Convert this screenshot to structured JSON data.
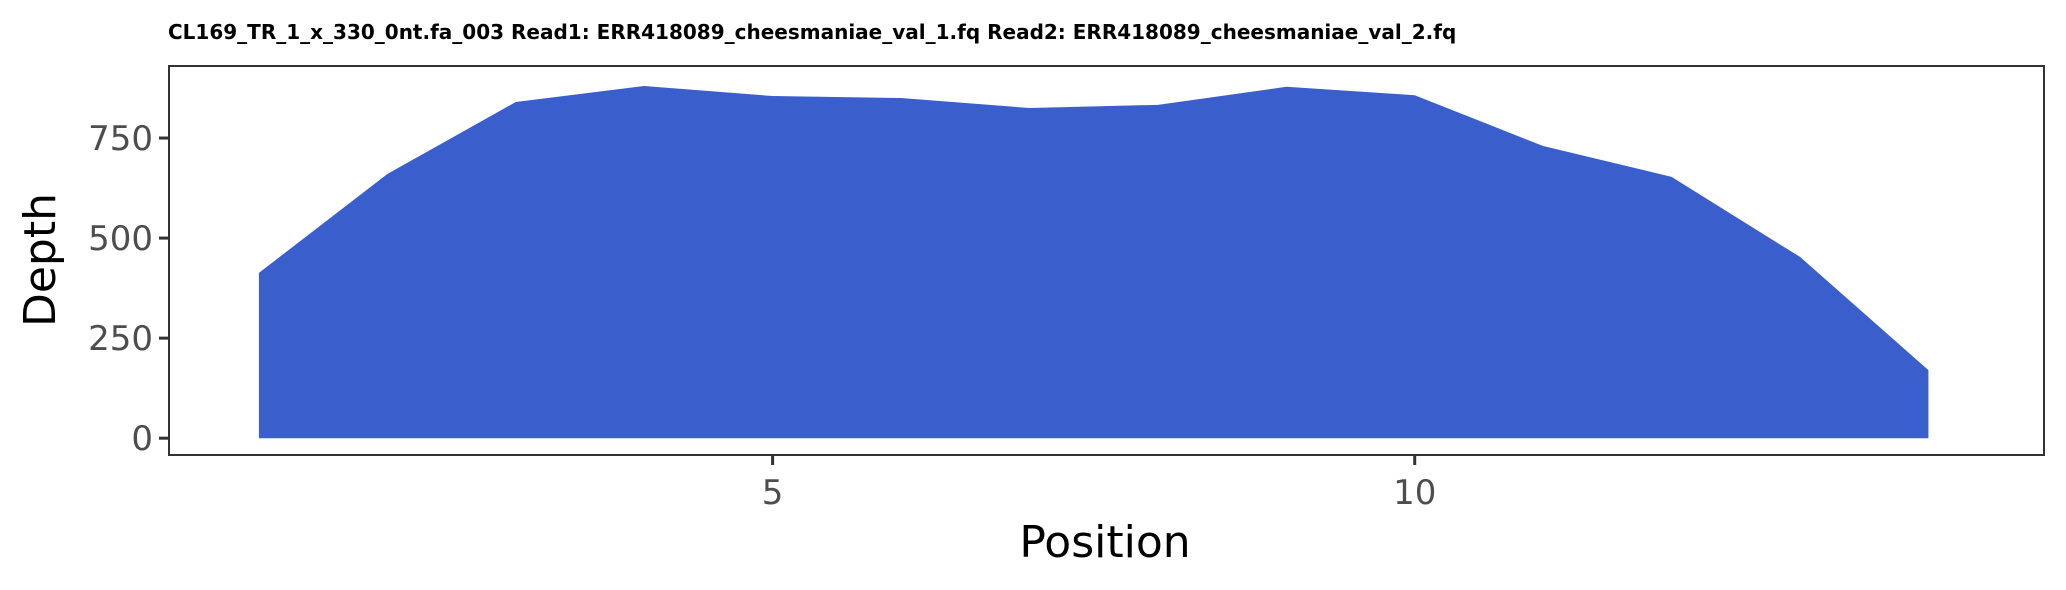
{
  "chart_data": {
    "type": "area",
    "title": "CL169_TR_1_x_330_0nt.fa_003 Read1: ERR418089_cheesmaniae_val_1.fq Read2: ERR418089_cheesmaniae_val_2.fq",
    "xlabel": "Position",
    "ylabel": "Depth",
    "x": [
      1,
      2,
      3,
      4,
      5,
      6,
      7,
      8,
      9,
      10,
      11,
      12,
      13,
      14
    ],
    "y": [
      413,
      660,
      840,
      880,
      855,
      850,
      825,
      833,
      878,
      857,
      730,
      653,
      453,
      170
    ],
    "xlim": [
      0.3,
      14.9
    ],
    "ylim": [
      -42,
      930
    ],
    "xticks": [
      5,
      10
    ],
    "yticks": [
      0,
      250,
      500,
      750
    ],
    "fill_color": "#3a5fcd",
    "grid": false,
    "legend": "none"
  }
}
